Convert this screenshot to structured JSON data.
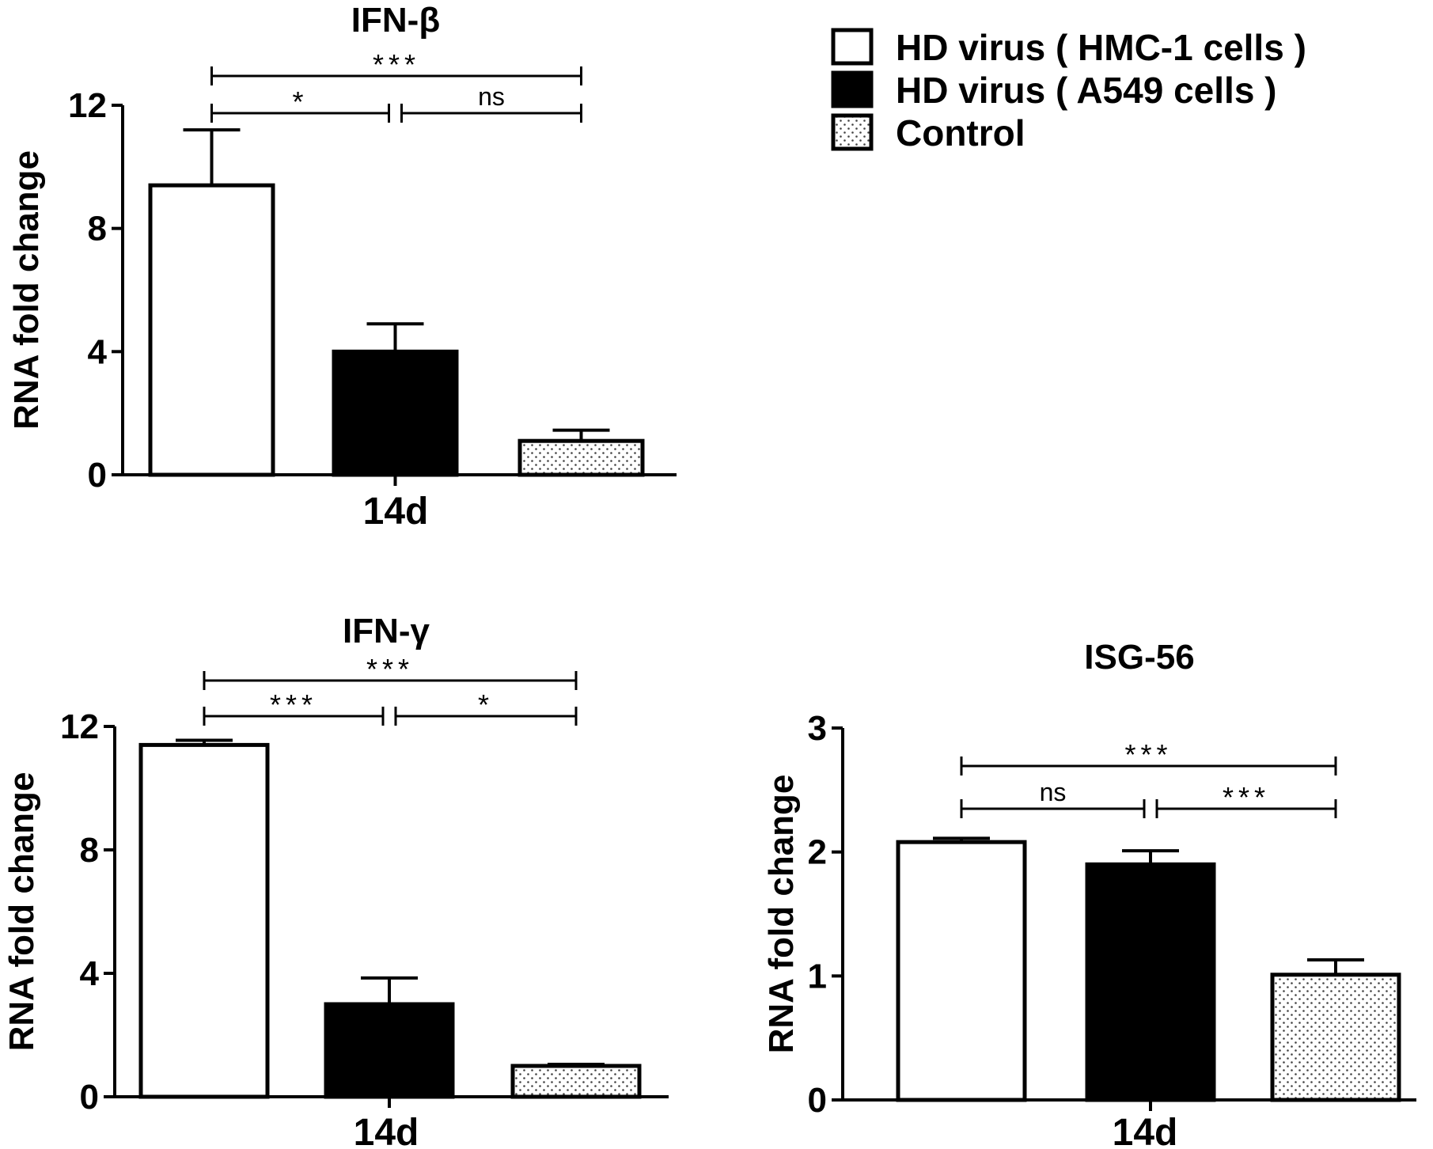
{
  "legend": {
    "items": [
      {
        "label": "HD virus ( HMC-1 cells )",
        "fill": "#ffffff"
      },
      {
        "label": "HD virus ( A549 cells )",
        "fill": "#000000"
      },
      {
        "label": "Control",
        "fill": "dotted"
      }
    ]
  },
  "chart_data": [
    {
      "type": "bar",
      "title": "IFN-β",
      "xlabel": "14d",
      "ylabel": "RNA fold change",
      "ylim": [
        0,
        12
      ],
      "yticks": [
        "0",
        "4",
        "8",
        "12"
      ],
      "ytick_values": [
        0,
        4,
        8,
        12
      ],
      "categories": [
        "HD virus ( HMC-1 cells )",
        "HD virus ( A549 cells )",
        "Control"
      ],
      "values": [
        9.4,
        4.0,
        1.1
      ],
      "errors": [
        1.8,
        0.9,
        0.35
      ],
      "significance": [
        {
          "from": 0,
          "to": 2,
          "label": "***",
          "level": 2
        },
        {
          "from": 0,
          "to": 1,
          "label": "*",
          "level": 1
        },
        {
          "from": 1,
          "to": 2,
          "label": "ns",
          "level": 1
        }
      ]
    },
    {
      "type": "bar",
      "title": "IFN-γ",
      "xlabel": "14d",
      "ylabel": "RNA fold change",
      "ylim": [
        0,
        12
      ],
      "yticks": [
        "0",
        "4",
        "8",
        "12"
      ],
      "ytick_values": [
        0,
        4,
        8,
        12
      ],
      "categories": [
        "HD virus ( HMC-1 cells )",
        "HD virus ( A549 cells )",
        "Control"
      ],
      "values": [
        11.4,
        3.0,
        1.0
      ],
      "errors": [
        0.15,
        0.85,
        0.05
      ],
      "significance": [
        {
          "from": 0,
          "to": 2,
          "label": "***",
          "level": 2
        },
        {
          "from": 0,
          "to": 1,
          "label": "***",
          "level": 1
        },
        {
          "from": 1,
          "to": 2,
          "label": "*",
          "level": 1
        }
      ]
    },
    {
      "type": "bar",
      "title": "ISG-56",
      "xlabel": "14d",
      "ylabel": "RNA fold change",
      "ylim": [
        0,
        3
      ],
      "yticks": [
        "0",
        "1",
        "2",
        "3"
      ],
      "ytick_values": [
        0,
        1,
        2,
        3
      ],
      "categories": [
        "HD virus ( HMC-1 cells )",
        "HD virus ( A549 cells )",
        "Control"
      ],
      "values": [
        2.08,
        1.9,
        1.01
      ],
      "errors": [
        0.03,
        0.11,
        0.12
      ],
      "significance": [
        {
          "from": 0,
          "to": 2,
          "label": "***",
          "level": 2
        },
        {
          "from": 0,
          "to": 1,
          "label": "ns",
          "level": 1
        },
        {
          "from": 1,
          "to": 2,
          "label": "***",
          "level": 1
        }
      ]
    }
  ]
}
